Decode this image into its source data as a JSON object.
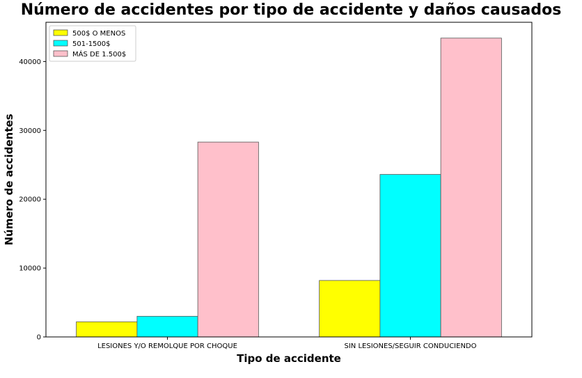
{
  "chart_data": {
    "type": "bar",
    "title": "Número de accidentes por tipo de accidente y daños causados",
    "xlabel": "Tipo de accidente",
    "ylabel": "Número de accidentes",
    "categories": [
      "LESIONES Y/O REMOLQUE POR CHOQUE",
      "SIN LESIONES/SEGUIR CONDUCIENDO"
    ],
    "series": [
      {
        "name": "500$ O MENOS",
        "values": [
          2200,
          8200
        ],
        "color": "#ffff00"
      },
      {
        "name": "501-1500$",
        "values": [
          3000,
          23600
        ],
        "color": "#00ffff"
      },
      {
        "name": "MÁS DE 1.500$",
        "values": [
          28300,
          43400
        ],
        "color": "#ffc0cb"
      }
    ],
    "ylim": [
      0,
      45700
    ],
    "yticks": [
      0,
      10000,
      20000,
      30000,
      40000
    ],
    "grid": false,
    "legend_position": "top-left"
  }
}
